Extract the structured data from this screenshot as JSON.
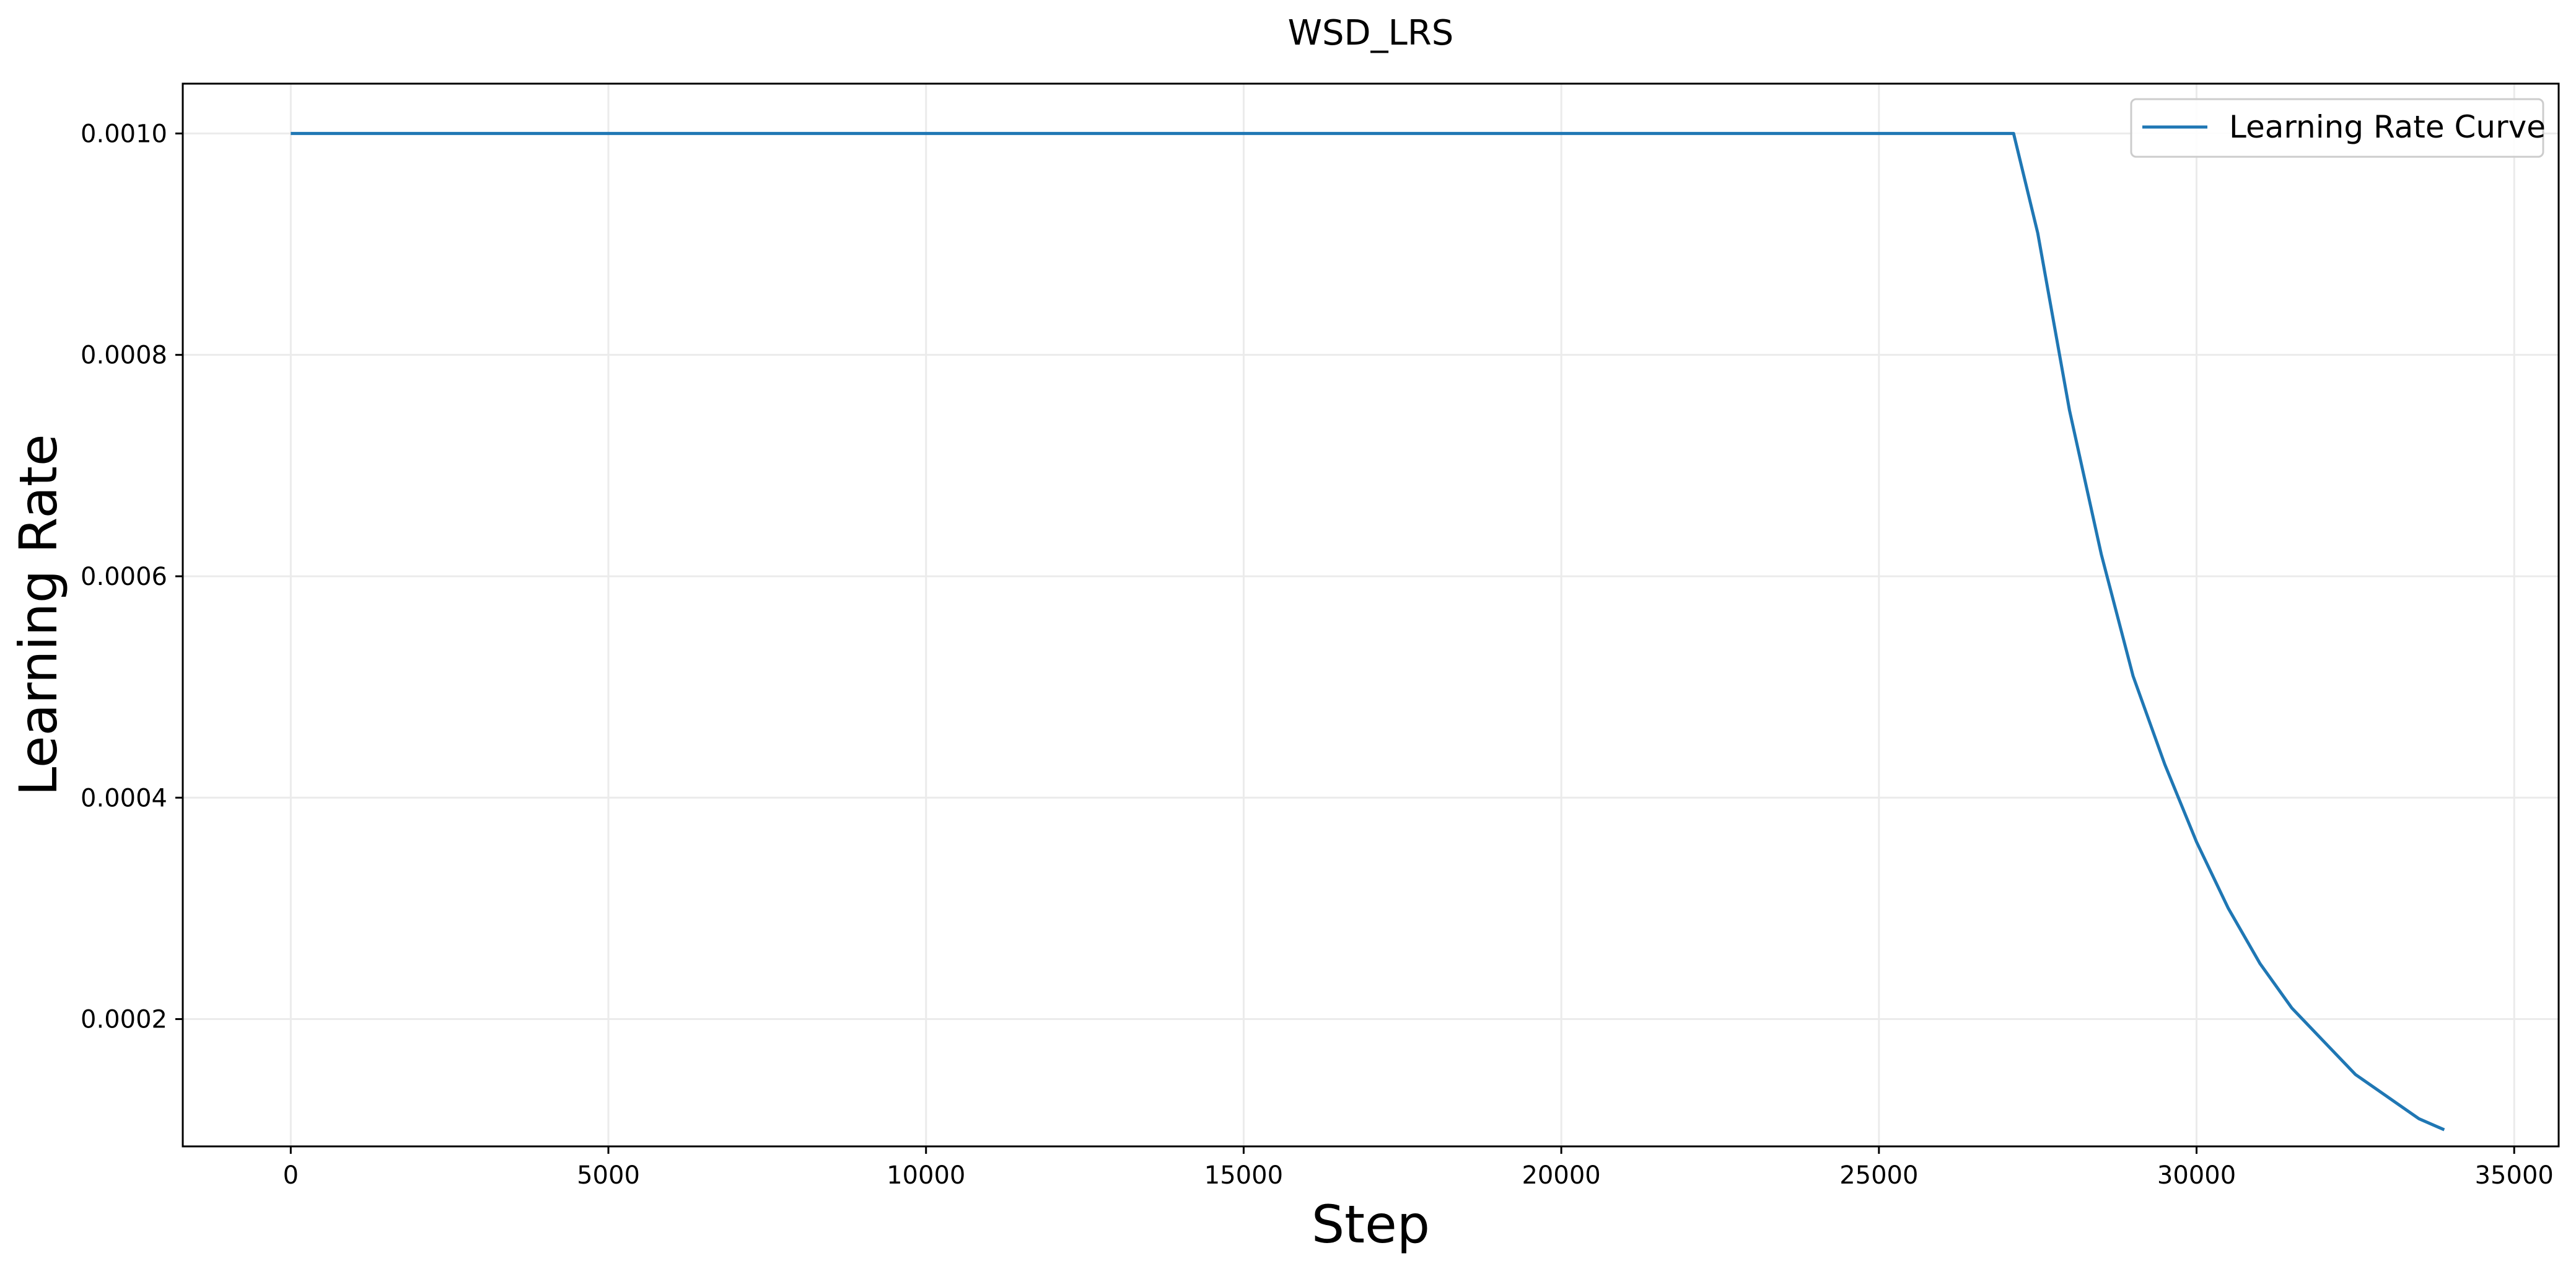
{
  "chart_data": {
    "type": "line",
    "title": "WSD_LRS",
    "xlabel": "Step",
    "ylabel": "Learning Rate",
    "xlim": [
      -1700,
      35700
    ],
    "ylim": [
      8.5e-05,
      0.001045
    ],
    "xticks": [
      0,
      5000,
      10000,
      15000,
      20000,
      25000,
      30000,
      35000
    ],
    "xtick_labels": [
      "0",
      "5000",
      "10000",
      "15000",
      "20000",
      "25000",
      "30000",
      "35000"
    ],
    "yticks": [
      0.0002,
      0.0004,
      0.0006,
      0.0008,
      0.001
    ],
    "ytick_labels": [
      "0.0002",
      "0.0004",
      "0.0006",
      "0.0008",
      "0.0010"
    ],
    "grid": true,
    "legend_position": "top-right",
    "series": [
      {
        "name": "Learning Rate Curve",
        "color": "#1f77b4",
        "x": [
          0,
          5000,
          10000,
          15000,
          20000,
          25000,
          27120,
          27500,
          28000,
          28500,
          29000,
          29500,
          30000,
          30500,
          31000,
          31500,
          32000,
          32500,
          33000,
          33500,
          33900
        ],
        "y": [
          0.001,
          0.001,
          0.001,
          0.001,
          0.001,
          0.001,
          0.001,
          0.00091,
          0.00075,
          0.00062,
          0.00051,
          0.00043,
          0.00036,
          0.0003,
          0.00025,
          0.00021,
          0.00018,
          0.00015,
          0.00013,
          0.00011,
          0.0001
        ]
      }
    ]
  }
}
